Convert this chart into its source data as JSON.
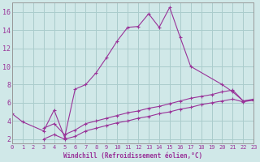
{
  "xlabel": "Windchill (Refroidissement éolien,°C)",
  "bg_color": "#d0e8e8",
  "line_color": "#993399",
  "grid_color": "#aacccc",
  "x_ticks": [
    0,
    1,
    2,
    3,
    4,
    5,
    6,
    7,
    8,
    9,
    10,
    11,
    12,
    13,
    14,
    15,
    16,
    17,
    18,
    19,
    20,
    21,
    22,
    23
  ],
  "y_ticks": [
    2,
    4,
    6,
    8,
    10,
    12,
    14,
    16
  ],
  "xlim": [
    0,
    23
  ],
  "ylim": [
    1.5,
    17.0
  ],
  "line1_x": [
    0,
    1,
    3,
    4,
    5,
    6,
    7,
    8,
    9,
    10,
    11,
    12,
    13,
    14,
    15,
    16,
    17,
    20,
    21,
    22,
    23
  ],
  "line1_y": [
    4.8,
    3.9,
    2.9,
    5.2,
    2.2,
    7.5,
    8.0,
    9.3,
    11.0,
    12.8,
    14.3,
    14.4,
    15.8,
    14.3,
    16.5,
    13.2,
    10.0,
    8.0,
    7.2,
    6.2,
    6.3
  ],
  "line2_x": [
    3,
    4,
    5,
    6,
    7,
    8,
    9,
    10,
    11,
    12,
    13,
    14,
    15,
    16,
    17,
    18,
    19,
    20,
    21,
    22,
    23
  ],
  "line2_y": [
    3.2,
    3.7,
    2.5,
    3.0,
    3.7,
    4.0,
    4.3,
    4.6,
    4.9,
    5.1,
    5.4,
    5.6,
    5.9,
    6.2,
    6.5,
    6.7,
    6.9,
    7.2,
    7.4,
    6.2,
    6.4
  ],
  "line3_x": [
    3,
    4,
    5,
    6,
    7,
    8,
    9,
    10,
    11,
    12,
    13,
    14,
    15,
    16,
    17,
    18,
    19,
    20,
    21,
    22,
    23
  ],
  "line3_y": [
    2.0,
    2.5,
    2.0,
    2.3,
    2.9,
    3.2,
    3.5,
    3.8,
    4.0,
    4.3,
    4.5,
    4.8,
    5.0,
    5.3,
    5.5,
    5.8,
    6.0,
    6.2,
    6.4,
    6.1,
    6.3
  ]
}
